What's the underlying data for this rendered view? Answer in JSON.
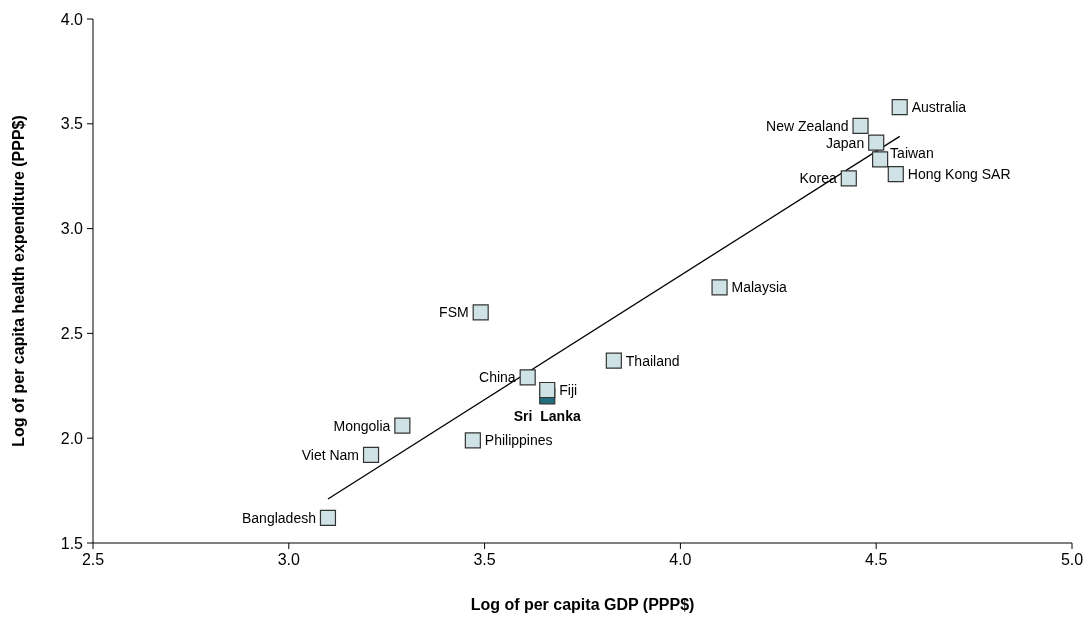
{
  "chart_data": {
    "type": "scatter",
    "xlabel": "Log of per capita GDP (PPP$)",
    "ylabel": "Log of per capita health expenditure (PPP$)",
    "xlim": [
      2.5,
      5.0
    ],
    "ylim": [
      1.5,
      4.0
    ],
    "xticks": [
      {
        "value": 2.5,
        "label": "2.5"
      },
      {
        "value": 3,
        "label": "3.0"
      },
      {
        "value": 3.5,
        "label": "3.5"
      },
      {
        "value": 4,
        "label": "4.0"
      },
      {
        "value": 4.5,
        "label": "4.5"
      },
      {
        "value": 5,
        "label": "5.0"
      }
    ],
    "yticks": [
      {
        "value": 1.5,
        "label": "1.5"
      },
      {
        "value": 2,
        "label": "2.0"
      },
      {
        "value": 2.5,
        "label": "2.5"
      },
      {
        "value": 3,
        "label": "3.0"
      },
      {
        "value": 3.5,
        "label": "3.5"
      },
      {
        "value": 4,
        "label": "4.0"
      }
    ],
    "grid": false,
    "series": [
      {
        "type": "line",
        "color": "#000000",
        "x": [
          3.1,
          4.56
        ],
        "values": [
          1.71,
          3.44
        ]
      },
      {
        "color": "#1f6f80",
        "marker": "square",
        "x": [
          3.66
        ],
        "values": [
          2.2
        ]
      },
      {
        "color": "#cfe3e6",
        "marker": "square",
        "x": [
          4.56,
          4.46,
          4.5,
          4.51,
          4.55,
          4.43,
          4.1,
          3.49,
          3.83,
          3.61,
          3.66,
          3.29,
          3.47,
          3.21,
          3.1
        ],
        "values": [
          3.58,
          3.49,
          3.41,
          3.33,
          3.26,
          3.24,
          2.72,
          2.6,
          2.37,
          2.29,
          2.23,
          2.06,
          1.99,
          1.92,
          1.62
        ]
      }
    ],
    "annotations": [
      {
        "text": "Australia",
        "x": 4.56,
        "y": 3.58
      },
      {
        "text": "New Zealand",
        "x": 4.46,
        "y": 3.49
      },
      {
        "text": "Japan",
        "x": 4.5,
        "y": 3.41
      },
      {
        "text": "Taiwan",
        "x": 4.51,
        "y": 3.33
      },
      {
        "text": "Hong Kong SAR",
        "x": 4.55,
        "y": 3.26
      },
      {
        "text": "Korea",
        "x": 4.43,
        "y": 3.24
      },
      {
        "text": "Malaysia",
        "x": 4.1,
        "y": 2.72
      },
      {
        "text": "FSM",
        "x": 3.49,
        "y": 2.6
      },
      {
        "text": "Thailand",
        "x": 3.83,
        "y": 2.37
      },
      {
        "text": "China",
        "x": 3.61,
        "y": 2.29
      },
      {
        "text": "Fiji",
        "x": 3.66,
        "y": 2.23
      },
      {
        "text": "Sri  Lanka",
        "x": 3.66,
        "y": 2.2
      },
      {
        "text": "Mongolia",
        "x": 3.29,
        "y": 2.06
      },
      {
        "text": "Philippines",
        "x": 3.47,
        "y": 1.99
      },
      {
        "text": "Viet Nam",
        "x": 3.21,
        "y": 1.92
      },
      {
        "text": "Bangladesh",
        "x": 3.1,
        "y": 1.62
      }
    ]
  }
}
